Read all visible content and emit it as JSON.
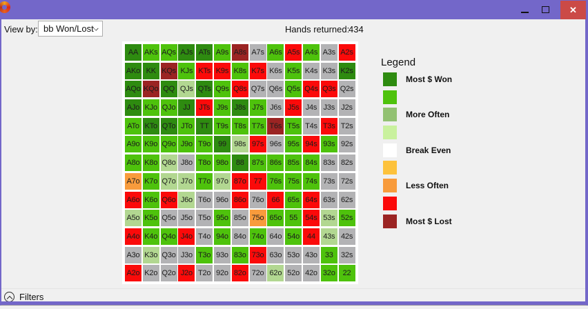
{
  "titlebar": {
    "accent_color": "#7367c9",
    "close_color": "#cb4a47",
    "close_glyph": "✕"
  },
  "toolbar": {
    "view_by_label": "View by:",
    "view_by_value": "bb Won/Lost",
    "hands_returned_label": "Hands returned:",
    "hands_returned_value": "434"
  },
  "palette": {
    "dg": "#2e8b10",
    "g": "#4ec20c",
    "pg": "#b2d791",
    "gy": "#b3b3b5",
    "r": "#fb0a0a",
    "mr": "#9b2423",
    "o": "#f89b3c",
    "y": "#fdc23c",
    "w": "#ffffff"
  },
  "grid": {
    "rows": [
      [
        {
          "h": "AA",
          "c": "dg"
        },
        {
          "h": "AKs",
          "c": "g"
        },
        {
          "h": "AQs",
          "c": "g"
        },
        {
          "h": "AJs",
          "c": "dg"
        },
        {
          "h": "ATs",
          "c": "dg"
        },
        {
          "h": "A9s",
          "c": "g"
        },
        {
          "h": "A8s",
          "c": "mr"
        },
        {
          "h": "A7s",
          "c": "gy"
        },
        {
          "h": "A6s",
          "c": "g"
        },
        {
          "h": "A5s",
          "c": "r"
        },
        {
          "h": "A4s",
          "c": "g"
        },
        {
          "h": "A3s",
          "c": "gy"
        },
        {
          "h": "A2s",
          "c": "r"
        }
      ],
      [
        {
          "h": "AKo",
          "c": "dg"
        },
        {
          "h": "KK",
          "c": "dg"
        },
        {
          "h": "KQs",
          "c": "mr"
        },
        {
          "h": "KJs",
          "c": "g"
        },
        {
          "h": "KTs",
          "c": "r"
        },
        {
          "h": "K9s",
          "c": "r"
        },
        {
          "h": "K8s",
          "c": "g"
        },
        {
          "h": "K7s",
          "c": "r"
        },
        {
          "h": "K6s",
          "c": "gy"
        },
        {
          "h": "K5s",
          "c": "g"
        },
        {
          "h": "K4s",
          "c": "gy"
        },
        {
          "h": "K3s",
          "c": "gy"
        },
        {
          "h": "K2s",
          "c": "dg"
        }
      ],
      [
        {
          "h": "AQo",
          "c": "dg"
        },
        {
          "h": "KQo",
          "c": "mr"
        },
        {
          "h": "QQ",
          "c": "dg"
        },
        {
          "h": "QJs",
          "c": "pg"
        },
        {
          "h": "QTs",
          "c": "dg"
        },
        {
          "h": "Q9s",
          "c": "g"
        },
        {
          "h": "Q8s",
          "c": "r"
        },
        {
          "h": "Q7s",
          "c": "gy"
        },
        {
          "h": "Q6s",
          "c": "gy"
        },
        {
          "h": "Q5s",
          "c": "g"
        },
        {
          "h": "Q4s",
          "c": "r"
        },
        {
          "h": "Q3s",
          "c": "r"
        },
        {
          "h": "Q2s",
          "c": "gy"
        }
      ],
      [
        {
          "h": "AJo",
          "c": "dg"
        },
        {
          "h": "KJo",
          "c": "g"
        },
        {
          "h": "QJo",
          "c": "g"
        },
        {
          "h": "JJ",
          "c": "dg"
        },
        {
          "h": "JTs",
          "c": "r"
        },
        {
          "h": "J9s",
          "c": "g"
        },
        {
          "h": "J8s",
          "c": "dg"
        },
        {
          "h": "J7s",
          "c": "g"
        },
        {
          "h": "J6s",
          "c": "gy"
        },
        {
          "h": "J5s",
          "c": "r"
        },
        {
          "h": "J4s",
          "c": "gy"
        },
        {
          "h": "J3s",
          "c": "gy"
        },
        {
          "h": "J2s",
          "c": "gy"
        }
      ],
      [
        {
          "h": "ATo",
          "c": "g"
        },
        {
          "h": "KTo",
          "c": "dg"
        },
        {
          "h": "QTo",
          "c": "dg"
        },
        {
          "h": "JTo",
          "c": "g"
        },
        {
          "h": "TT",
          "c": "dg"
        },
        {
          "h": "T9s",
          "c": "g"
        },
        {
          "h": "T8s",
          "c": "g"
        },
        {
          "h": "T7s",
          "c": "g"
        },
        {
          "h": "T6s",
          "c": "mr"
        },
        {
          "h": "T5s",
          "c": "g"
        },
        {
          "h": "T4s",
          "c": "gy"
        },
        {
          "h": "T3s",
          "c": "r"
        },
        {
          "h": "T2s",
          "c": "gy"
        }
      ],
      [
        {
          "h": "A9o",
          "c": "g"
        },
        {
          "h": "K9o",
          "c": "g"
        },
        {
          "h": "Q9o",
          "c": "g"
        },
        {
          "h": "J9o",
          "c": "g"
        },
        {
          "h": "T9o",
          "c": "g"
        },
        {
          "h": "99",
          "c": "dg"
        },
        {
          "h": "98s",
          "c": "pg"
        },
        {
          "h": "97s",
          "c": "r"
        },
        {
          "h": "96s",
          "c": "gy"
        },
        {
          "h": "95s",
          "c": "g"
        },
        {
          "h": "94s",
          "c": "r"
        },
        {
          "h": "93s",
          "c": "g"
        },
        {
          "h": "92s",
          "c": "gy"
        }
      ],
      [
        {
          "h": "A8o",
          "c": "g"
        },
        {
          "h": "K8o",
          "c": "g"
        },
        {
          "h": "Q8o",
          "c": "pg"
        },
        {
          "h": "J8o",
          "c": "gy"
        },
        {
          "h": "T8o",
          "c": "g"
        },
        {
          "h": "98o",
          "c": "g"
        },
        {
          "h": "88",
          "c": "dg"
        },
        {
          "h": "87s",
          "c": "g"
        },
        {
          "h": "86s",
          "c": "g"
        },
        {
          "h": "85s",
          "c": "g"
        },
        {
          "h": "84s",
          "c": "g"
        },
        {
          "h": "83s",
          "c": "gy"
        },
        {
          "h": "82s",
          "c": "gy"
        }
      ],
      [
        {
          "h": "A7o",
          "c": "o"
        },
        {
          "h": "K7o",
          "c": "g"
        },
        {
          "h": "Q7o",
          "c": "pg"
        },
        {
          "h": "J7o",
          "c": "pg"
        },
        {
          "h": "T7o",
          "c": "g"
        },
        {
          "h": "97o",
          "c": "pg"
        },
        {
          "h": "87o",
          "c": "r"
        },
        {
          "h": "77",
          "c": "r"
        },
        {
          "h": "76s",
          "c": "g"
        },
        {
          "h": "75s",
          "c": "g"
        },
        {
          "h": "74s",
          "c": "g"
        },
        {
          "h": "73s",
          "c": "gy"
        },
        {
          "h": "72s",
          "c": "gy"
        }
      ],
      [
        {
          "h": "A6o",
          "c": "r"
        },
        {
          "h": "K6o",
          "c": "g"
        },
        {
          "h": "Q6o",
          "c": "r"
        },
        {
          "h": "J6o",
          "c": "pg"
        },
        {
          "h": "T6o",
          "c": "gy"
        },
        {
          "h": "96o",
          "c": "gy"
        },
        {
          "h": "86o",
          "c": "r"
        },
        {
          "h": "76o",
          "c": "gy"
        },
        {
          "h": "66",
          "c": "r"
        },
        {
          "h": "65s",
          "c": "g"
        },
        {
          "h": "64s",
          "c": "r"
        },
        {
          "h": "63s",
          "c": "gy"
        },
        {
          "h": "62s",
          "c": "gy"
        }
      ],
      [
        {
          "h": "A5o",
          "c": "pg"
        },
        {
          "h": "K5o",
          "c": "g"
        },
        {
          "h": "Q5o",
          "c": "gy"
        },
        {
          "h": "J5o",
          "c": "gy"
        },
        {
          "h": "T5o",
          "c": "gy"
        },
        {
          "h": "95o",
          "c": "g"
        },
        {
          "h": "85o",
          "c": "gy"
        },
        {
          "h": "75o",
          "c": "o"
        },
        {
          "h": "65o",
          "c": "g"
        },
        {
          "h": "55",
          "c": "g"
        },
        {
          "h": "54s",
          "c": "r"
        },
        {
          "h": "53s",
          "c": "pg"
        },
        {
          "h": "52s",
          "c": "g"
        }
      ],
      [
        {
          "h": "A4o",
          "c": "r"
        },
        {
          "h": "K4o",
          "c": "g"
        },
        {
          "h": "Q4o",
          "c": "g"
        },
        {
          "h": "J4o",
          "c": "r"
        },
        {
          "h": "T4o",
          "c": "gy"
        },
        {
          "h": "94o",
          "c": "g"
        },
        {
          "h": "84o",
          "c": "gy"
        },
        {
          "h": "74o",
          "c": "g"
        },
        {
          "h": "64o",
          "c": "gy"
        },
        {
          "h": "54o",
          "c": "g"
        },
        {
          "h": "44",
          "c": "r"
        },
        {
          "h": "43s",
          "c": "pg"
        },
        {
          "h": "42s",
          "c": "gy"
        }
      ],
      [
        {
          "h": "A3o",
          "c": "gy"
        },
        {
          "h": "K3o",
          "c": "pg"
        },
        {
          "h": "Q3o",
          "c": "gy"
        },
        {
          "h": "J3o",
          "c": "gy"
        },
        {
          "h": "T3o",
          "c": "g"
        },
        {
          "h": "93o",
          "c": "gy"
        },
        {
          "h": "83o",
          "c": "g"
        },
        {
          "h": "73o",
          "c": "r"
        },
        {
          "h": "63o",
          "c": "gy"
        },
        {
          "h": "53o",
          "c": "gy"
        },
        {
          "h": "43o",
          "c": "gy"
        },
        {
          "h": "33",
          "c": "g"
        },
        {
          "h": "32s",
          "c": "gy"
        }
      ],
      [
        {
          "h": "A2o",
          "c": "r"
        },
        {
          "h": "K2o",
          "c": "gy"
        },
        {
          "h": "Q2o",
          "c": "gy"
        },
        {
          "h": "J2o",
          "c": "r"
        },
        {
          "h": "T2o",
          "c": "gy"
        },
        {
          "h": "92o",
          "c": "gy"
        },
        {
          "h": "82o",
          "c": "r"
        },
        {
          "h": "72o",
          "c": "gy"
        },
        {
          "h": "62o",
          "c": "pg"
        },
        {
          "h": "52o",
          "c": "gy"
        },
        {
          "h": "42o",
          "c": "gy"
        },
        {
          "h": "32o",
          "c": "g"
        },
        {
          "h": "22",
          "c": "g"
        }
      ]
    ]
  },
  "legend": {
    "title": "Legend",
    "items": [
      {
        "color": "#2e8b10",
        "label": "Most $ Won"
      },
      {
        "color": "#4ec20c",
        "label": ""
      },
      {
        "color": "#92c172",
        "label": "More Often"
      },
      {
        "color": "#c9f19e",
        "label": ""
      },
      {
        "color": "#ffffff",
        "label": "Break Even"
      },
      {
        "color": "#fdc23c",
        "label": ""
      },
      {
        "color": "#f89b3c",
        "label": "Less Often"
      },
      {
        "color": "#fb0a0a",
        "label": ""
      },
      {
        "color": "#9b2423",
        "label": "Most $ Lost"
      }
    ]
  },
  "filters": {
    "label": "Filters"
  }
}
